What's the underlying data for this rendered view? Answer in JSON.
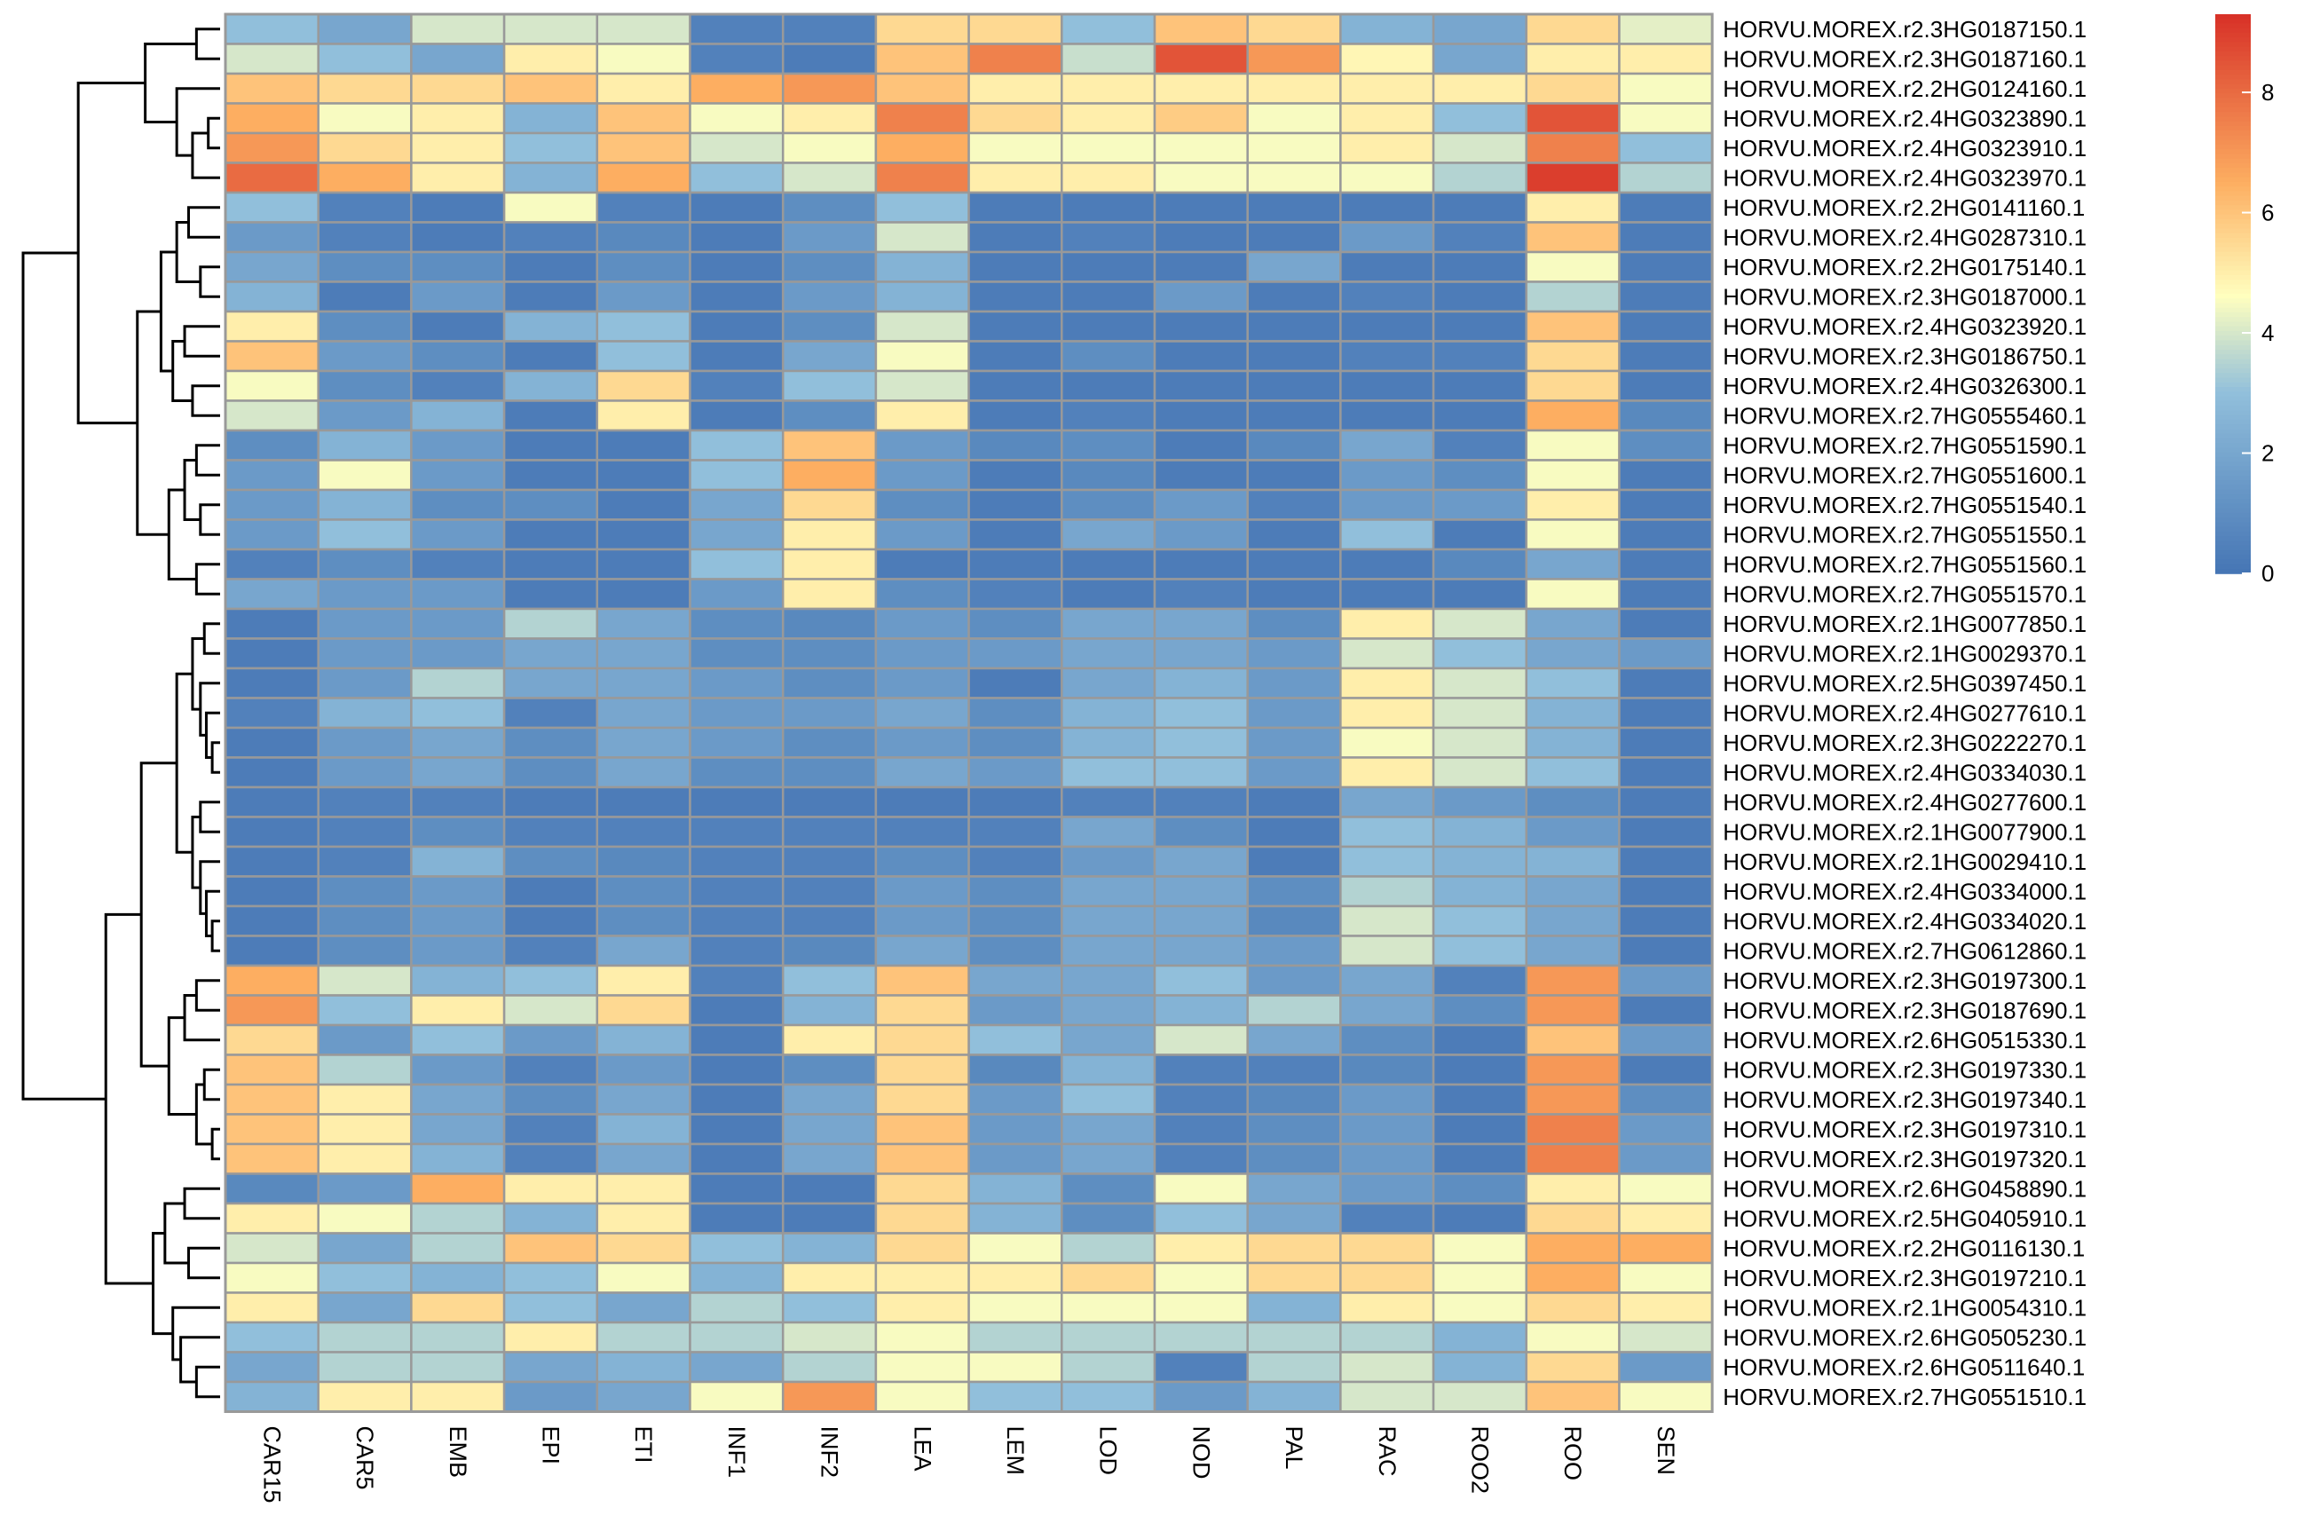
{
  "chart_data": {
    "type": "heatmap",
    "title": "",
    "xlabel": "",
    "ylabel": "",
    "columns": [
      "CAR15",
      "CAR5",
      "EMB",
      "EPI",
      "ETI",
      "INF1",
      "INF2",
      "LEA",
      "LEM",
      "LOD",
      "NOD",
      "PAL",
      "RAC",
      "ROO2",
      "ROO",
      "SEN"
    ],
    "rows": [
      "HORVU.MOREX.r2.3HG0187150.1",
      "HORVU.MOREX.r2.3HG0187160.1",
      "HORVU.MOREX.r2.2HG0124160.1",
      "HORVU.MOREX.r2.4HG0323890.1",
      "HORVU.MOREX.r2.4HG0323910.1",
      "HORVU.MOREX.r2.4HG0323970.1",
      "HORVU.MOREX.r2.2HG0141160.1",
      "HORVU.MOREX.r2.4HG0287310.1",
      "HORVU.MOREX.r2.2HG0175140.1",
      "HORVU.MOREX.r2.3HG0187000.1",
      "HORVU.MOREX.r2.4HG0323920.1",
      "HORVU.MOREX.r2.3HG0186750.1",
      "HORVU.MOREX.r2.4HG0326300.1",
      "HORVU.MOREX.r2.7HG0555460.1",
      "HORVU.MOREX.r2.7HG0551590.1",
      "HORVU.MOREX.r2.7HG0551600.1",
      "HORVU.MOREX.r2.7HG0551540.1",
      "HORVU.MOREX.r2.7HG0551550.1",
      "HORVU.MOREX.r2.7HG0551560.1",
      "HORVU.MOREX.r2.7HG0551570.1",
      "HORVU.MOREX.r2.1HG0077850.1",
      "HORVU.MOREX.r2.1HG0029370.1",
      "HORVU.MOREX.r2.5HG0397450.1",
      "HORVU.MOREX.r2.4HG0277610.1",
      "HORVU.MOREX.r2.3HG0222270.1",
      "HORVU.MOREX.r2.4HG0334030.1",
      "HORVU.MOREX.r2.4HG0277600.1",
      "HORVU.MOREX.r2.1HG0077900.1",
      "HORVU.MOREX.r2.1HG0029410.1",
      "HORVU.MOREX.r2.4HG0334000.1",
      "HORVU.MOREX.r2.4HG0334020.1",
      "HORVU.MOREX.r2.7HG0612860.1",
      "HORVU.MOREX.r2.3HG0197300.1",
      "HORVU.MOREX.r2.3HG0187690.1",
      "HORVU.MOREX.r2.6HG0515330.1",
      "HORVU.MOREX.r2.3HG0197330.1",
      "HORVU.MOREX.r2.3HG0197340.1",
      "HORVU.MOREX.r2.3HG0197310.1",
      "HORVU.MOREX.r2.3HG0197320.1",
      "HORVU.MOREX.r2.6HG0458890.1",
      "HORVU.MOREX.r2.5HG0405910.1",
      "HORVU.MOREX.r2.2HG0116130.1",
      "HORVU.MOREX.r2.3HG0197210.1",
      "HORVU.MOREX.r2.1HG0054310.1",
      "HORVU.MOREX.r2.6HG0505230.1",
      "HORVU.MOREX.r2.6HG0511640.1",
      "HORVU.MOREX.r2.7HG0551510.1"
    ],
    "values": [
      [
        3.0,
        2.0,
        4.0,
        4.0,
        4.0,
        0.5,
        0.5,
        5.5,
        5.5,
        3.0,
        6.0,
        5.5,
        2.5,
        2.0,
        5.5,
        4.2
      ],
      [
        4.0,
        3.0,
        2.0,
        5.0,
        4.5,
        0.5,
        0.3,
        6.0,
        7.5,
        3.8,
        8.5,
        7.0,
        4.8,
        2.0,
        5.0,
        5.0
      ],
      [
        6.0,
        5.5,
        5.5,
        6.0,
        5.0,
        6.5,
        7.0,
        6.0,
        5.0,
        5.0,
        5.0,
        5.0,
        5.0,
        5.0,
        5.5,
        4.5
      ],
      [
        6.5,
        4.5,
        5.0,
        2.5,
        6.0,
        4.5,
        5.0,
        7.5,
        5.5,
        5.0,
        5.8,
        4.5,
        5.0,
        3.0,
        8.5,
        4.5
      ],
      [
        7.0,
        5.5,
        5.0,
        3.0,
        6.0,
        4.0,
        4.5,
        6.5,
        4.5,
        4.5,
        4.5,
        4.5,
        5.0,
        4.0,
        7.5,
        3.0
      ],
      [
        8.0,
        6.5,
        5.0,
        2.5,
        6.5,
        3.0,
        4.0,
        7.5,
        5.0,
        5.0,
        4.5,
        4.5,
        4.5,
        3.5,
        9.0,
        3.5
      ],
      [
        3.0,
        0.5,
        0.3,
        4.5,
        0.5,
        0.3,
        1.0,
        3.0,
        0.3,
        0.3,
        0.3,
        0.3,
        0.3,
        0.3,
        5.0,
        0.3
      ],
      [
        1.5,
        0.5,
        0.3,
        0.5,
        0.8,
        0.3,
        1.5,
        4.0,
        0.3,
        0.5,
        0.3,
        0.3,
        1.5,
        0.5,
        6.0,
        0.3
      ],
      [
        2.0,
        1.0,
        1.0,
        0.3,
        1.0,
        0.3,
        1.0,
        2.5,
        0.3,
        0.3,
        0.3,
        2.0,
        0.3,
        0.3,
        4.5,
        0.3
      ],
      [
        2.5,
        0.3,
        1.5,
        0.3,
        1.5,
        0.3,
        1.5,
        2.5,
        0.3,
        0.3,
        1.5,
        0.3,
        0.5,
        0.3,
        3.5,
        0.3
      ],
      [
        5.0,
        1.0,
        0.3,
        2.5,
        3.0,
        0.3,
        1.0,
        4.0,
        0.3,
        0.3,
        0.3,
        0.3,
        0.3,
        0.3,
        6.0,
        0.3
      ],
      [
        6.0,
        1.5,
        1.0,
        0.3,
        3.0,
        0.3,
        2.0,
        4.5,
        0.3,
        1.0,
        0.3,
        0.3,
        0.5,
        0.5,
        5.5,
        0.3
      ],
      [
        4.5,
        1.0,
        0.5,
        2.5,
        5.5,
        0.5,
        3.0,
        4.0,
        0.3,
        0.3,
        0.3,
        0.3,
        0.3,
        0.3,
        5.5,
        0.3
      ],
      [
        4.0,
        1.5,
        2.5,
        0.3,
        5.0,
        0.3,
        1.0,
        5.0,
        0.3,
        0.5,
        0.3,
        0.3,
        0.3,
        0.3,
        6.5,
        0.8
      ],
      [
        1.0,
        2.5,
        1.5,
        0.3,
        0.3,
        3.0,
        6.0,
        1.5,
        0.8,
        1.0,
        0.3,
        0.8,
        2.0,
        0.5,
        4.5,
        1.0
      ],
      [
        1.5,
        4.5,
        1.5,
        0.3,
        0.3,
        3.0,
        6.5,
        1.5,
        0.3,
        0.8,
        0.3,
        0.3,
        1.5,
        1.0,
        4.5,
        0.3
      ],
      [
        1.5,
        2.5,
        1.0,
        1.0,
        0.3,
        2.0,
        5.5,
        1.0,
        0.3,
        1.0,
        1.5,
        0.5,
        1.5,
        1.5,
        5.0,
        0.3
      ],
      [
        1.5,
        3.0,
        1.5,
        0.3,
        0.3,
        2.0,
        5.0,
        1.5,
        0.3,
        2.0,
        1.5,
        0.3,
        3.0,
        0.3,
        4.5,
        0.3
      ],
      [
        0.5,
        1.0,
        0.5,
        0.3,
        0.3,
        3.0,
        5.0,
        0.3,
        0.3,
        0.3,
        0.3,
        0.3,
        0.3,
        0.8,
        2.0,
        0.3
      ],
      [
        2.0,
        1.5,
        1.5,
        0.3,
        0.3,
        1.5,
        5.0,
        1.0,
        0.5,
        0.3,
        0.5,
        0.3,
        0.3,
        0.3,
        4.5,
        0.3
      ],
      [
        0.3,
        1.5,
        1.5,
        3.5,
        2.0,
        1.0,
        0.8,
        1.5,
        1.0,
        2.0,
        2.0,
        1.0,
        5.0,
        4.0,
        2.0,
        0.3
      ],
      [
        0.3,
        1.5,
        1.5,
        2.0,
        2.0,
        1.0,
        1.0,
        1.5,
        1.5,
        2.0,
        2.0,
        1.5,
        4.0,
        3.0,
        2.0,
        1.5
      ],
      [
        0.3,
        1.5,
        3.5,
        2.0,
        2.0,
        1.5,
        1.0,
        1.5,
        0.3,
        2.0,
        2.5,
        1.5,
        5.0,
        4.0,
        3.0,
        0.3
      ],
      [
        0.5,
        2.5,
        3.0,
        0.5,
        2.0,
        1.5,
        1.5,
        2.0,
        1.0,
        2.5,
        3.0,
        1.5,
        5.0,
        4.0,
        2.5,
        0.3
      ],
      [
        0.3,
        1.5,
        2.0,
        1.0,
        2.0,
        1.5,
        1.0,
        1.5,
        1.0,
        2.5,
        3.0,
        1.5,
        4.5,
        4.0,
        2.5,
        0.3
      ],
      [
        0.3,
        1.5,
        2.0,
        1.0,
        2.0,
        1.0,
        1.0,
        2.0,
        1.5,
        3.0,
        3.0,
        1.5,
        5.0,
        4.0,
        3.0,
        0.3
      ],
      [
        0.3,
        0.5,
        0.5,
        0.3,
        0.3,
        0.3,
        0.3,
        0.3,
        0.3,
        0.5,
        0.5,
        0.3,
        2.0,
        1.5,
        1.0,
        0.3
      ],
      [
        0.3,
        0.5,
        1.0,
        0.5,
        0.5,
        0.5,
        0.5,
        0.5,
        0.5,
        2.0,
        1.0,
        0.3,
        3.0,
        2.5,
        1.5,
        0.3
      ],
      [
        0.3,
        0.5,
        2.5,
        1.0,
        0.8,
        0.5,
        0.5,
        1.0,
        0.5,
        1.5,
        2.0,
        0.3,
        3.0,
        2.5,
        2.5,
        0.3
      ],
      [
        0.3,
        1.0,
        1.5,
        0.3,
        1.0,
        0.5,
        0.5,
        1.5,
        1.0,
        2.0,
        2.0,
        1.0,
        3.5,
        2.5,
        2.0,
        0.3
      ],
      [
        0.3,
        1.0,
        1.5,
        0.3,
        1.0,
        0.5,
        0.5,
        1.5,
        1.0,
        2.0,
        2.0,
        0.8,
        4.0,
        3.0,
        2.0,
        0.3
      ],
      [
        0.3,
        1.0,
        1.5,
        0.5,
        2.0,
        0.5,
        0.8,
        2.0,
        1.0,
        2.0,
        2.0,
        1.5,
        4.0,
        3.0,
        2.0,
        0.3
      ],
      [
        6.5,
        4.0,
        2.5,
        3.0,
        5.0,
        0.5,
        3.0,
        6.0,
        2.0,
        2.0,
        3.0,
        1.5,
        2.0,
        0.5,
        7.0,
        1.5
      ],
      [
        7.0,
        3.0,
        5.0,
        4.0,
        5.5,
        0.3,
        2.5,
        5.5,
        1.5,
        2.0,
        2.5,
        3.5,
        2.0,
        1.0,
        7.0,
        0.3
      ],
      [
        5.5,
        1.5,
        3.0,
        1.5,
        2.5,
        0.3,
        5.0,
        5.5,
        3.0,
        2.0,
        4.0,
        2.0,
        1.0,
        0.3,
        6.0,
        1.5
      ],
      [
        6.0,
        3.5,
        1.5,
        0.5,
        1.5,
        0.3,
        1.0,
        5.5,
        0.8,
        2.5,
        0.5,
        0.5,
        0.8,
        0.3,
        7.0,
        0.3
      ],
      [
        6.0,
        5.0,
        2.0,
        1.0,
        2.0,
        0.3,
        2.0,
        5.5,
        1.5,
        3.0,
        0.5,
        0.8,
        1.5,
        0.3,
        7.0,
        1.0
      ],
      [
        6.0,
        5.0,
        2.0,
        0.5,
        2.5,
        0.3,
        2.0,
        6.0,
        1.5,
        2.0,
        0.5,
        1.0,
        1.5,
        0.3,
        7.5,
        1.5
      ],
      [
        6.0,
        5.0,
        2.5,
        0.5,
        2.0,
        0.3,
        2.0,
        6.0,
        1.5,
        2.0,
        0.5,
        1.0,
        1.5,
        0.3,
        7.5,
        1.5
      ],
      [
        0.8,
        1.5,
        6.5,
        5.0,
        5.0,
        0.3,
        0.3,
        5.5,
        2.5,
        1.0,
        4.5,
        2.0,
        1.5,
        1.0,
        5.0,
        4.5
      ],
      [
        5.0,
        4.5,
        3.5,
        2.5,
        5.0,
        0.3,
        0.3,
        5.5,
        2.5,
        1.0,
        3.0,
        2.0,
        0.5,
        0.3,
        5.5,
        5.0
      ],
      [
        4.0,
        2.0,
        3.5,
        6.0,
        5.5,
        3.0,
        2.5,
        5.5,
        4.5,
        3.5,
        5.0,
        5.5,
        5.5,
        4.5,
        6.5,
        6.5
      ],
      [
        4.5,
        3.0,
        2.5,
        3.0,
        4.5,
        2.5,
        5.0,
        5.0,
        5.0,
        5.5,
        4.5,
        5.5,
        5.5,
        4.5,
        6.5,
        4.5
      ],
      [
        5.0,
        2.0,
        5.5,
        3.0,
        2.0,
        3.5,
        3.0,
        5.0,
        4.5,
        4.5,
        4.5,
        2.5,
        5.0,
        4.5,
        5.5,
        5.0
      ],
      [
        3.0,
        3.5,
        3.5,
        5.0,
        3.5,
        3.5,
        4.0,
        4.5,
        3.5,
        3.5,
        3.5,
        3.5,
        3.5,
        2.5,
        4.5,
        4.0
      ],
      [
        2.0,
        3.5,
        3.5,
        2.0,
        2.5,
        2.0,
        3.5,
        4.5,
        4.5,
        3.5,
        0.5,
        3.5,
        4.0,
        2.5,
        5.5,
        1.5
      ],
      [
        2.5,
        5.0,
        5.0,
        1.5,
        2.0,
        4.5,
        7.0,
        4.5,
        3.0,
        3.0,
        1.5,
        2.5,
        4.0,
        4.0,
        6.0,
        4.5
      ]
    ],
    "color_scale": {
      "domain": [
        0,
        3,
        4.6,
        6.5,
        9.3
      ],
      "colors": [
        "#4575b4",
        "#91bfdb",
        "#ffffbf",
        "#fdae61",
        "#d73027"
      ]
    },
    "legend": {
      "position": "right",
      "ticks": [
        0,
        2,
        4,
        6,
        8
      ],
      "range": [
        0,
        9.3
      ]
    },
    "dendrogram": "rows"
  }
}
